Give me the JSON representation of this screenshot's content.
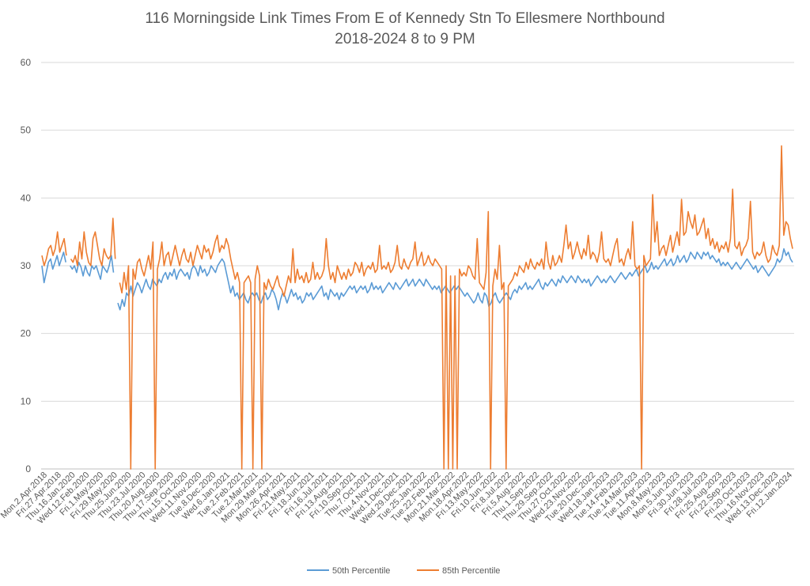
{
  "chart_data": {
    "type": "line",
    "title": "116 Morningside Link Times From E of Kennedy Stn To Ellesmere Northbound",
    "subtitle": "2018-2024 8 to 9 PM",
    "ylim": [
      0,
      60
    ],
    "yticks": [
      "0",
      "10",
      "20",
      "30",
      "40",
      "50",
      "60"
    ],
    "grid": true,
    "legend_position": "bottom",
    "x_tick_labels": [
      "Mon.2.Apr.2018",
      "Fri.27.Apr.2018",
      "Thu.16.Jan.2020",
      "Wed.12.Feb.2020",
      "Fri.1.May.2020",
      "Fri.29.May.2020",
      "Thu.25.Jun.2020",
      "Thu.23.Jul.2020",
      "Thu.20.Aug.2020",
      "Thu.17.Sep.2020",
      "Thu.15.Oct.2020",
      "Wed.11.Nov.2020",
      "Tue.8.Dec.2020",
      "Wed.6.Jan.2021",
      "Tue.2.Feb.2021",
      "Tue.2.Mar.2021",
      "Mon.29.Mar.2021",
      "Mon.26.Apr.2021",
      "Fri.21.May.2021",
      "Fri.18.Jun.2021",
      "Fri.16.Jul.2021",
      "Fri.13.Aug.2021",
      "Fri.10.Sep.2021",
      "Thu.7.Oct.2021",
      "Thu.4.Nov.2021",
      "Wed.1.Dec.2021",
      "Wed.29.Dec.2021",
      "Tue.25.Jan.2022",
      "Tue.22.Feb.2022",
      "Mon.21.Mar.2022",
      "Mon.18.Apr.2022",
      "Fri.13.May.2022",
      "Fri.10.Jun.2022",
      "Fri.8.Jul.2022",
      "Fri.5.Aug.2022",
      "Thu.1.Sep.2022",
      "Thu.29.Sep.2022",
      "Thu.27.Oct.2022",
      "Wed.23.Nov.2022",
      "Tue.20.Dec.2022",
      "Wed.18.Jan.2023",
      "Tue.14.Feb.2023",
      "Tue.14.Mar.2023",
      "Tue.11.Apr.2023",
      "Mon.8.May.2023",
      "Mon.5.Jun.2023",
      "Fri.30.Jun.2023",
      "Fri.28.Jul.2023",
      "Fri.25.Aug.2023",
      "Fri.22.Sep.2023",
      "Fri.20.Oct.2023",
      "Thu.16.Nov.2023",
      "Wed.13.Dec.2023",
      "Fri.12.Jan.2024"
    ],
    "series": [
      {
        "name": "50th Percentile",
        "color": "#5b9bd5",
        "values": [
          30.0,
          27.5,
          29.0,
          30.5,
          31.0,
          29.5,
          30.5,
          31.5,
          30.0,
          31.0,
          32.0,
          30.5,
          null,
          30.0,
          29.5,
          30.0,
          29.0,
          30.5,
          29.8,
          28.5,
          30.0,
          29.0,
          28.5,
          30.0,
          29.5,
          30.0,
          29.0,
          28.0,
          30.0,
          29.5,
          29.0,
          30.0,
          31.5,
          29.0,
          null,
          24.5,
          23.5,
          25.0,
          24.0,
          26.0,
          25.5,
          27.0,
          25.5,
          26.5,
          27.5,
          27.0,
          26.0,
          27.0,
          28.0,
          27.0,
          26.5,
          28.0,
          27.5,
          27.0,
          28.0,
          27.5,
          28.5,
          29.0,
          28.0,
          29.0,
          28.5,
          29.5,
          28.0,
          29.0,
          29.5,
          29.0,
          28.5,
          29.0,
          28.0,
          29.5,
          30.0,
          29.5,
          28.5,
          30.0,
          29.0,
          29.5,
          28.5,
          29.0,
          30.0,
          29.5,
          29.0,
          30.0,
          30.5,
          31.0,
          30.5,
          29.0,
          27.5,
          26.0,
          27.0,
          25.5,
          26.0,
          25.0,
          25.5,
          26.0,
          25.0,
          24.5,
          25.5,
          26.0,
          25.5,
          26.0,
          25.0,
          24.5,
          25.5,
          26.0,
          25.0,
          25.5,
          26.5,
          26.0,
          25.0,
          23.5,
          25.0,
          26.0,
          25.5,
          24.5,
          25.5,
          26.5,
          25.5,
          26.0,
          25.0,
          25.5,
          24.5,
          25.0,
          26.0,
          25.5,
          26.0,
          25.0,
          25.5,
          26.0,
          26.5,
          27.0,
          25.5,
          26.0,
          25.0,
          26.5,
          26.0,
          25.5,
          26.0,
          25.0,
          26.0,
          25.5,
          26.0,
          26.5,
          27.0,
          26.5,
          27.0,
          26.0,
          26.5,
          27.0,
          26.5,
          27.0,
          26.0,
          26.5,
          27.5,
          26.5,
          27.0,
          26.5,
          27.0,
          26.0,
          26.5,
          27.0,
          27.5,
          27.0,
          26.5,
          27.5,
          27.0,
          26.5,
          27.0,
          27.5,
          28.0,
          27.0,
          27.5,
          28.0,
          27.0,
          27.5,
          28.0,
          27.5,
          27.0,
          28.0,
          27.5,
          27.0,
          26.5,
          27.0,
          26.5,
          27.0,
          26.0,
          26.5,
          27.0,
          26.5,
          26.0,
          26.5,
          27.0,
          26.5,
          27.0,
          26.5,
          26.0,
          25.5,
          26.0,
          25.5,
          25.0,
          24.5,
          25.0,
          26.0,
          25.0,
          24.5,
          26.0,
          25.5,
          24.0,
          24.5,
          25.5,
          26.0,
          25.0,
          24.5,
          25.0,
          25.5,
          26.0,
          25.5,
          25.0,
          26.0,
          26.5,
          26.0,
          27.0,
          26.5,
          27.0,
          27.5,
          26.5,
          27.0,
          26.5,
          27.0,
          27.5,
          28.0,
          27.0,
          26.5,
          27.5,
          27.0,
          27.5,
          28.0,
          27.5,
          27.0,
          28.0,
          27.5,
          28.5,
          28.0,
          27.5,
          28.0,
          28.5,
          28.0,
          27.5,
          28.5,
          28.0,
          27.5,
          28.0,
          27.5,
          28.0,
          27.0,
          27.5,
          28.0,
          28.5,
          28.0,
          27.5,
          28.0,
          27.5,
          28.0,
          28.5,
          28.0,
          27.5,
          28.0,
          28.5,
          29.0,
          28.5,
          28.0,
          28.5,
          29.0,
          28.5,
          29.0,
          29.5,
          28.5,
          29.0,
          29.5,
          30.0,
          29.0,
          29.5,
          30.5,
          29.5,
          30.0,
          29.5,
          30.0,
          30.5,
          31.0,
          30.0,
          30.5,
          31.0,
          30.0,
          30.5,
          31.5,
          30.5,
          31.0,
          31.5,
          30.5,
          31.0,
          32.0,
          31.5,
          31.0,
          32.0,
          31.5,
          31.0,
          32.0,
          31.5,
          32.0,
          31.0,
          31.5,
          31.0,
          30.5,
          31.0,
          30.0,
          30.5,
          30.0,
          30.5,
          30.0,
          29.5,
          30.0,
          30.5,
          30.0,
          29.5,
          30.0,
          30.5,
          31.0,
          30.5,
          30.0,
          29.5,
          30.0,
          29.0,
          29.5,
          30.0,
          29.5,
          29.0,
          28.5,
          29.0,
          29.5,
          30.0,
          31.0,
          30.5,
          31.0,
          32.5,
          31.5,
          32.0,
          31.0,
          30.5
        ],
        "note_x_range": "Apr.2018 to Jan.2024"
      },
      {
        "name": "85th Percentile",
        "color": "#ed7d31",
        "values": [
          31.5,
          30.0,
          31.0,
          32.5,
          33.0,
          31.5,
          32.5,
          35.0,
          32.0,
          33.0,
          34.0,
          31.5,
          null,
          31.0,
          30.5,
          31.5,
          30.0,
          33.5,
          31.0,
          35.0,
          32.0,
          30.5,
          30.0,
          34.0,
          35.0,
          33.0,
          31.0,
          30.0,
          32.5,
          31.5,
          31.0,
          31.5,
          37.0,
          31.0,
          null,
          27.5,
          26.0,
          29.0,
          26.5,
          30.0,
          0,
          29.5,
          28.0,
          30.5,
          31.0,
          29.5,
          28.5,
          30.0,
          31.5,
          29.5,
          33.5,
          0,
          29.5,
          31.0,
          33.5,
          30.0,
          31.5,
          32.0,
          30.0,
          31.5,
          33.0,
          31.5,
          30.0,
          31.5,
          32.5,
          31.0,
          30.5,
          32.0,
          30.0,
          31.5,
          33.0,
          32.0,
          31.0,
          33.0,
          32.0,
          32.5,
          31.0,
          32.0,
          33.5,
          34.5,
          32.0,
          33.0,
          32.5,
          34.0,
          33.0,
          31.0,
          29.5,
          28.0,
          29.0,
          27.5,
          0,
          27.5,
          28.0,
          28.5,
          27.5,
          0,
          28.0,
          30.0,
          28.5,
          0,
          27.5,
          26.5,
          28.0,
          27.0,
          26.5,
          27.5,
          28.5,
          27.0,
          26.5,
          25.5,
          27.0,
          28.5,
          27.5,
          32.5,
          27.5,
          29.5,
          28.0,
          28.5,
          27.5,
          29.0,
          27.5,
          28.0,
          30.5,
          28.0,
          29.0,
          28.0,
          28.5,
          29.5,
          34.0,
          30.0,
          28.0,
          29.0,
          27.5,
          30.0,
          29.0,
          28.0,
          29.0,
          28.0,
          29.5,
          28.5,
          29.0,
          30.5,
          30.0,
          29.0,
          30.5,
          28.5,
          29.5,
          30.0,
          29.5,
          30.5,
          29.0,
          29.5,
          33.0,
          29.5,
          30.0,
          29.5,
          30.5,
          29.0,
          29.5,
          30.5,
          33.0,
          30.0,
          29.5,
          31.0,
          30.0,
          29.5,
          30.5,
          31.0,
          33.5,
          30.0,
          31.0,
          32.0,
          30.0,
          30.5,
          31.5,
          30.5,
          30.0,
          31.0,
          30.5,
          30.0,
          29.5,
          0,
          30.0,
          0,
          28.5,
          0,
          28.5,
          0,
          29.5,
          28.5,
          29.0,
          28.5,
          30.0,
          29.5,
          28.5,
          28.0,
          34.0,
          27.5,
          27.0,
          26.5,
          29.0,
          38.0,
          0,
          27.0,
          29.5,
          28.0,
          33.0,
          26.5,
          27.5,
          0,
          27.0,
          27.5,
          28.0,
          29.0,
          28.5,
          30.0,
          29.5,
          29.0,
          30.5,
          29.5,
          31.0,
          30.0,
          29.5,
          30.5,
          30.0,
          31.0,
          29.5,
          33.5,
          30.5,
          29.5,
          31.5,
          30.0,
          30.5,
          31.5,
          30.5,
          33.0,
          36.0,
          32.5,
          33.5,
          31.0,
          32.0,
          33.5,
          32.0,
          31.0,
          32.5,
          31.5,
          34.5,
          31.0,
          32.0,
          31.5,
          30.5,
          32.0,
          35.0,
          31.0,
          30.5,
          31.0,
          30.0,
          31.5,
          33.0,
          34.0,
          30.5,
          31.0,
          30.0,
          31.5,
          32.5,
          31.0,
          36.5,
          30.0,
          29.5,
          30.0,
          0,
          31.5,
          30.0,
          30.5,
          31.0,
          40.5,
          33.5,
          36.5,
          31.5,
          32.5,
          33.0,
          31.5,
          33.0,
          34.5,
          32.0,
          33.5,
          35.0,
          33.0,
          39.8,
          34.5,
          35.0,
          38.0,
          36.5,
          35.5,
          37.5,
          34.5,
          35.0,
          36.0,
          37.0,
          34.0,
          35.5,
          33.0,
          34.0,
          32.5,
          33.5,
          32.0,
          33.0,
          32.5,
          33.5,
          32.0,
          34.0,
          41.3,
          33.0,
          32.5,
          33.5,
          31.5,
          32.5,
          33.0,
          34.0,
          39.5,
          32.0,
          31.0,
          32.0,
          31.5,
          32.0,
          33.5,
          31.5,
          30.5,
          31.0,
          33.0,
          32.0,
          31.5,
          33.0,
          47.7,
          34.5,
          36.5,
          36.0,
          34.0,
          32.5
        ]
      }
    ]
  }
}
